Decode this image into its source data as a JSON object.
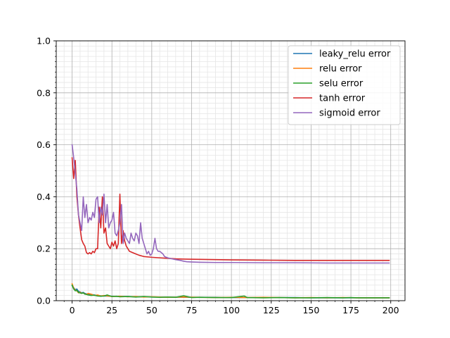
{
  "chart_data": {
    "type": "line",
    "title": "",
    "xlabel": "",
    "ylabel": "",
    "xlim": [
      -9.95,
      208.95
    ],
    "ylim": [
      0,
      1
    ],
    "x_ticks": [
      0,
      25,
      50,
      75,
      100,
      125,
      150,
      175,
      200
    ],
    "x_tick_labels": [
      "0",
      "25",
      "50",
      "75",
      "100",
      "125",
      "150",
      "175",
      "200"
    ],
    "y_ticks": [
      0.0,
      0.2,
      0.4,
      0.6,
      0.8,
      1.0
    ],
    "y_tick_labels": [
      "0.0",
      "0.2",
      "0.4",
      "0.6",
      "0.8",
      "1.0"
    ],
    "grid": "major and minor",
    "legend_position": "top-right",
    "series": [
      {
        "name": "leaky_relu error",
        "color": "#1f77b4",
        "x": [
          0,
          1,
          2,
          3,
          4,
          5,
          6,
          7,
          8,
          9,
          10,
          12,
          14,
          16,
          18,
          20,
          25,
          30,
          35,
          40,
          45,
          50,
          60,
          70,
          80,
          90,
          100,
          110,
          120,
          130,
          140,
          150,
          160,
          170,
          180,
          190,
          199
        ],
        "y": [
          0.058,
          0.05,
          0.042,
          0.045,
          0.036,
          0.034,
          0.03,
          0.032,
          0.028,
          0.026,
          0.025,
          0.024,
          0.022,
          0.02,
          0.019,
          0.018,
          0.017,
          0.016,
          0.016,
          0.015,
          0.015,
          0.014,
          0.014,
          0.013,
          0.013,
          0.013,
          0.012,
          0.012,
          0.012,
          0.012,
          0.012,
          0.011,
          0.011,
          0.011,
          0.011,
          0.011,
          0.011
        ]
      },
      {
        "name": "relu error",
        "color": "#ff7f0e",
        "x": [
          0,
          1,
          2,
          3,
          4,
          5,
          6,
          7,
          8,
          9,
          10,
          12,
          14,
          16,
          18,
          20,
          25,
          30,
          35,
          40,
          45,
          50,
          60,
          70,
          80,
          90,
          100,
          110,
          120,
          130,
          140,
          150,
          160,
          170,
          180,
          190,
          199
        ],
        "y": [
          0.065,
          0.048,
          0.04,
          0.038,
          0.03,
          0.033,
          0.028,
          0.03,
          0.026,
          0.024,
          0.028,
          0.025,
          0.02,
          0.022,
          0.018,
          0.02,
          0.016,
          0.017,
          0.015,
          0.016,
          0.014,
          0.015,
          0.013,
          0.014,
          0.013,
          0.012,
          0.013,
          0.012,
          0.013,
          0.012,
          0.011,
          0.012,
          0.011,
          0.012,
          0.011,
          0.011,
          0.011
        ]
      },
      {
        "name": "selu error",
        "color": "#2ca02c",
        "x": [
          0,
          1,
          2,
          3,
          4,
          5,
          6,
          7,
          8,
          9,
          10,
          12,
          14,
          16,
          18,
          20,
          22,
          25,
          28,
          30,
          35,
          40,
          45,
          50,
          55,
          60,
          65,
          70,
          75,
          80,
          90,
          100,
          108,
          110,
          120,
          130,
          140,
          150,
          160,
          170,
          175,
          180,
          190,
          199
        ],
        "y": [
          0.06,
          0.045,
          0.038,
          0.04,
          0.032,
          0.03,
          0.028,
          0.03,
          0.025,
          0.024,
          0.022,
          0.02,
          0.021,
          0.018,
          0.017,
          0.018,
          0.022,
          0.016,
          0.017,
          0.015,
          0.016,
          0.014,
          0.016,
          0.014,
          0.013,
          0.014,
          0.013,
          0.019,
          0.012,
          0.013,
          0.012,
          0.012,
          0.018,
          0.012,
          0.011,
          0.012,
          0.011,
          0.011,
          0.012,
          0.011,
          0.012,
          0.011,
          0.011,
          0.011
        ]
      },
      {
        "name": "tanh error",
        "color": "#d62728",
        "x": [
          0,
          1,
          2,
          3,
          4,
          5,
          6,
          7,
          8,
          9,
          10,
          11,
          12,
          13,
          14,
          15,
          16,
          17,
          18,
          19,
          20,
          21,
          22,
          23,
          24,
          25,
          26,
          27,
          28,
          29,
          30,
          31,
          32,
          33,
          34,
          35,
          36,
          38,
          40,
          42,
          45,
          50,
          55,
          60,
          65,
          70,
          80,
          90,
          100,
          120,
          140,
          160,
          180,
          199
        ],
        "y": [
          0.55,
          0.47,
          0.54,
          0.4,
          0.33,
          0.28,
          0.235,
          0.22,
          0.21,
          0.185,
          0.18,
          0.185,
          0.18,
          0.19,
          0.185,
          0.2,
          0.2,
          0.36,
          0.28,
          0.4,
          0.26,
          0.28,
          0.22,
          0.21,
          0.2,
          0.225,
          0.21,
          0.23,
          0.2,
          0.22,
          0.41,
          0.22,
          0.27,
          0.23,
          0.21,
          0.2,
          0.19,
          0.185,
          0.18,
          0.175,
          0.17,
          0.167,
          0.165,
          0.163,
          0.161,
          0.16,
          0.159,
          0.158,
          0.157,
          0.156,
          0.155,
          0.155,
          0.155,
          0.155
        ]
      },
      {
        "name": "sigmoid error",
        "color": "#9467bd",
        "x": [
          0,
          1,
          2,
          3,
          4,
          5,
          6,
          7,
          8,
          9,
          10,
          11,
          12,
          13,
          14,
          15,
          16,
          17,
          18,
          19,
          20,
          21,
          22,
          23,
          24,
          25,
          26,
          27,
          28,
          29,
          30,
          31,
          32,
          33,
          34,
          35,
          36,
          37,
          38,
          39,
          40,
          41,
          42,
          43,
          44,
          45,
          46,
          47,
          48,
          49,
          50,
          51,
          52,
          53,
          54,
          55,
          56,
          57,
          58,
          60,
          62,
          65,
          68,
          70,
          72,
          75,
          80,
          90,
          100,
          120,
          140,
          160,
          180,
          199
        ],
        "y": [
          0.6,
          0.55,
          0.49,
          0.43,
          0.33,
          0.3,
          0.27,
          0.4,
          0.32,
          0.37,
          0.3,
          0.32,
          0.31,
          0.34,
          0.32,
          0.39,
          0.4,
          0.3,
          0.36,
          0.33,
          0.41,
          0.3,
          0.37,
          0.28,
          0.3,
          0.31,
          0.34,
          0.26,
          0.25,
          0.27,
          0.3,
          0.37,
          0.22,
          0.26,
          0.24,
          0.23,
          0.22,
          0.26,
          0.24,
          0.23,
          0.26,
          0.25,
          0.22,
          0.3,
          0.24,
          0.22,
          0.2,
          0.18,
          0.19,
          0.175,
          0.18,
          0.2,
          0.24,
          0.2,
          0.19,
          0.19,
          0.185,
          0.18,
          0.17,
          0.165,
          0.162,
          0.158,
          0.155,
          0.152,
          0.15,
          0.149,
          0.148,
          0.147,
          0.147,
          0.146,
          0.146,
          0.145,
          0.145,
          0.145
        ]
      }
    ]
  }
}
